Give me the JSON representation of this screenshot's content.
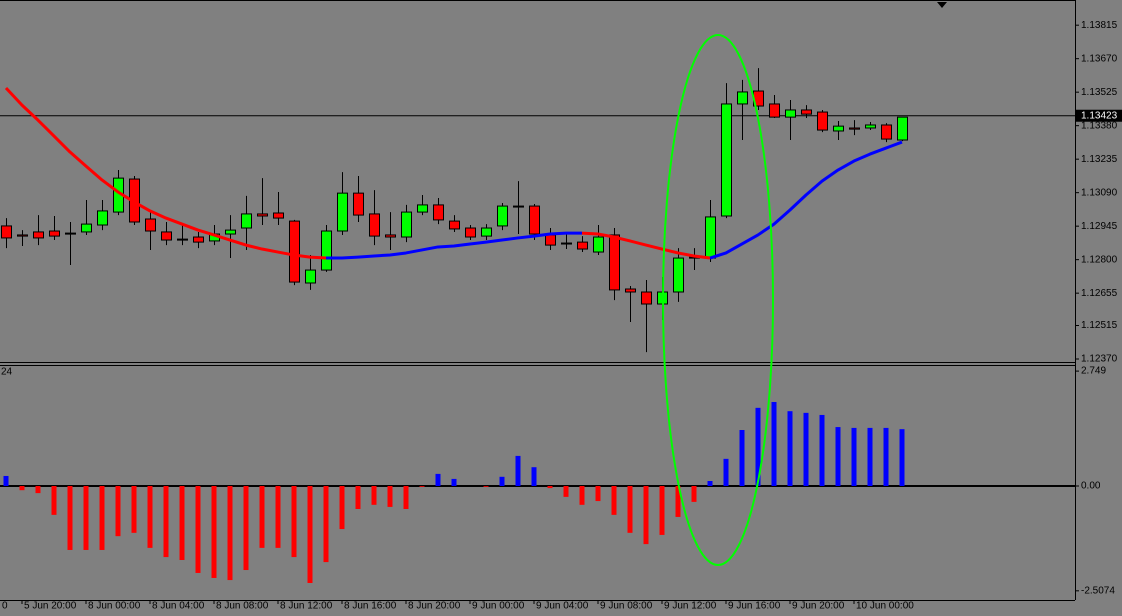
{
  "chart_data": [
    {
      "type": "candlestick",
      "categories": [
        null,
        "5 Jun 20:00",
        null,
        null,
        null,
        "8 Jun 00:00",
        null,
        null,
        null,
        "8 Jun 04:00",
        null,
        null,
        null,
        "8 Jun 08:00",
        null,
        null,
        null,
        "8 Jun 12:00",
        null,
        null,
        null,
        "8 Jun 16:00",
        null,
        null,
        null,
        "8 Jun 20:00",
        null,
        null,
        null,
        "9 Jun 00:00",
        null,
        null,
        null,
        "9 Jun 04:00",
        null,
        null,
        null,
        "9 Jun 08:00",
        null,
        null,
        null,
        "9 Jun 12:00",
        null,
        null,
        null,
        "9 Jun 16:00",
        null,
        null,
        null,
        "9 Jun 20:00",
        null,
        null,
        null,
        "10 Jun 00:00",
        null,
        null,
        null
      ],
      "x_label_fragment": "0",
      "open": [
        1.12946,
        1.12907,
        1.1292,
        1.12924,
        1.12915,
        1.1292,
        1.1295,
        1.13006,
        1.13149,
        1.12976,
        1.1292,
        1.12889,
        1.12898,
        1.12881,
        1.12911,
        1.12937,
        1.12998,
        1.13002,
        1.12967,
        1.12699,
        1.12755,
        1.12924,
        1.13088,
        1.12998,
        1.12907,
        1.12898,
        1.13006,
        1.13037,
        1.12967,
        1.12937,
        1.12902,
        1.12946,
        1.13032,
        1.13032,
        1.12907,
        1.12872,
        1.12876,
        1.12833,
        1.12907,
        1.12673,
        1.1266,
        1.12608,
        1.1266,
        1.12811,
        1.12807,
        1.12989,
        1.13474,
        1.1353,
        1.13474,
        1.13417,
        1.13448,
        1.13439,
        1.13357,
        1.1337,
        1.1337,
        1.13383,
        1.13318
      ],
      "high": [
        1.1298,
        1.12928,
        1.12993,
        1.12989,
        1.12963,
        1.13058,
        1.13058,
        1.13188,
        1.13162,
        1.13006,
        1.12963,
        1.1295,
        1.1292,
        1.1295,
        1.12993,
        1.13076,
        1.13153,
        1.13093,
        1.12972,
        1.1282,
        1.1295,
        1.13179,
        1.13162,
        1.13101,
        1.13006,
        1.13037,
        1.1308,
        1.13067,
        1.12993,
        1.1295,
        1.12954,
        1.13045,
        1.1314,
        1.13041,
        1.12937,
        1.12911,
        1.12902,
        1.1295,
        1.12937,
        1.12686,
        1.12712,
        1.12725,
        1.1285,
        1.1285,
        1.13058,
        1.13564,
        1.13578,
        1.13629,
        1.13513,
        1.13491,
        1.13469,
        1.13448,
        1.134,
        1.13404,
        1.13396,
        1.13391,
        1.13417
      ],
      "low": [
        1.1285,
        1.12859,
        1.12863,
        1.12885,
        1.12777,
        1.12907,
        1.12928,
        1.12993,
        1.1295,
        1.12842,
        1.12863,
        1.12863,
        1.1285,
        1.12863,
        1.12807,
        1.12842,
        1.1295,
        1.1295,
        1.1269,
        1.12669,
        1.12747,
        1.12907,
        1.12963,
        1.12863,
        1.12842,
        1.12876,
        1.12993,
        1.12954,
        1.1292,
        1.12885,
        1.12885,
        1.12928,
        1.12911,
        1.12885,
        1.12842,
        1.12846,
        1.12833,
        1.1282,
        1.12625,
        1.1253,
        1.124,
        1.12539,
        1.12617,
        1.12755,
        1.1279,
        1.1298,
        1.13318,
        1.13448,
        1.13413,
        1.13318,
        1.13413,
        1.13352,
        1.13318,
        1.13339,
        1.13361,
        1.13309,
        1.13313
      ],
      "close": [
        1.12894,
        1.12902,
        1.12894,
        1.12902,
        1.12911,
        1.12954,
        1.13011,
        1.13153,
        1.12963,
        1.12924,
        1.12885,
        1.12885,
        1.12876,
        1.12911,
        1.12928,
        1.12998,
        1.12989,
        1.1298,
        1.12703,
        1.12755,
        1.12924,
        1.13088,
        1.12993,
        1.12902,
        1.12898,
        1.13006,
        1.13037,
        1.12972,
        1.12933,
        1.12898,
        1.12937,
        1.13032,
        1.13028,
        1.12911,
        1.12863,
        1.12868,
        1.12846,
        1.12898,
        1.12669,
        1.1266,
        1.12608,
        1.1266,
        1.12807,
        1.12807,
        1.12985,
        1.13474,
        1.13526,
        1.13465,
        1.13417,
        1.13448,
        1.1343,
        1.13361,
        1.13378,
        1.13365,
        1.13383,
        1.13322,
        1.13417
      ],
      "up_color": "#00ff00",
      "down_color": "#ff0000",
      "ma": {
        "values": [
          1.13543,
          1.13469,
          1.13404,
          1.13335,
          1.13266,
          1.13205,
          1.13145,
          1.13093,
          1.1305,
          1.13011,
          1.1298,
          1.12954,
          1.12928,
          1.12907,
          1.12885,
          1.12863,
          1.12846,
          1.12833,
          1.1282,
          1.12811,
          1.12807,
          1.12807,
          1.12811,
          1.12816,
          1.1282,
          1.12829,
          1.12842,
          1.12855,
          1.12859,
          1.12868,
          1.12876,
          1.12885,
          1.12894,
          1.12902,
          1.12911,
          1.12915,
          1.12915,
          1.12911,
          1.12898,
          1.12881,
          1.12863,
          1.12846,
          1.12829,
          1.12816,
          1.12807,
          1.12829,
          1.12868,
          1.12907,
          1.12954,
          1.13015,
          1.1308,
          1.1314,
          1.13188,
          1.13227,
          1.13257,
          1.13283,
          1.13309
        ],
        "up_color": "#0000ff",
        "down_color": "#ff0000"
      },
      "current_price": 1.13423,
      "ylim": [
        1.12357,
        1.13924
      ],
      "yticks": [
        1.13815,
        {
          "value": 1.1367,
          "label": "1.13670"
        },
        1.13525,
        {
          "value": 1.1338,
          "label": "1.13380"
        },
        1.13235,
        {
          "value": 1.1309,
          "label": "1.13090"
        },
        1.12945,
        {
          "value": 1.128,
          "label": "1.12800"
        },
        1.12655,
        1.12515,
        {
          "value": 1.1237,
          "label": "1.12370"
        }
      ]
    },
    {
      "type": "bar",
      "label": "24",
      "values": [
        0.24,
        -0.1,
        -0.17,
        -0.69,
        -1.53,
        -1.53,
        -1.53,
        -1.2,
        -1.12,
        -1.48,
        -1.7,
        -1.77,
        -2.08,
        -2.2,
        -2.25,
        -2.01,
        -1.48,
        -1.48,
        -1.7,
        -2.32,
        -1.82,
        -1.03,
        -0.55,
        -0.45,
        -0.5,
        -0.55,
        -0.02,
        0.29,
        0.17,
        0,
        -0.02,
        0.22,
        0.72,
        0.45,
        -0.05,
        -0.26,
        -0.45,
        -0.36,
        -0.69,
        -1.12,
        -1.39,
        -1.17,
        -0.74,
        -0.38,
        0.12,
        0.65,
        1.34,
        1.87,
        2.01,
        1.79,
        1.75,
        1.7,
        1.41,
        1.39,
        1.39,
        1.39,
        1.36
      ],
      "up_color": "#0000ff",
      "down_color": "#ff0000",
      "ylim": [
        -2.727,
        2.895
      ],
      "yticks": [
        2.749,
        {
          "value": 0,
          "label": "0.00"
        },
        -2.5074
      ]
    }
  ]
}
